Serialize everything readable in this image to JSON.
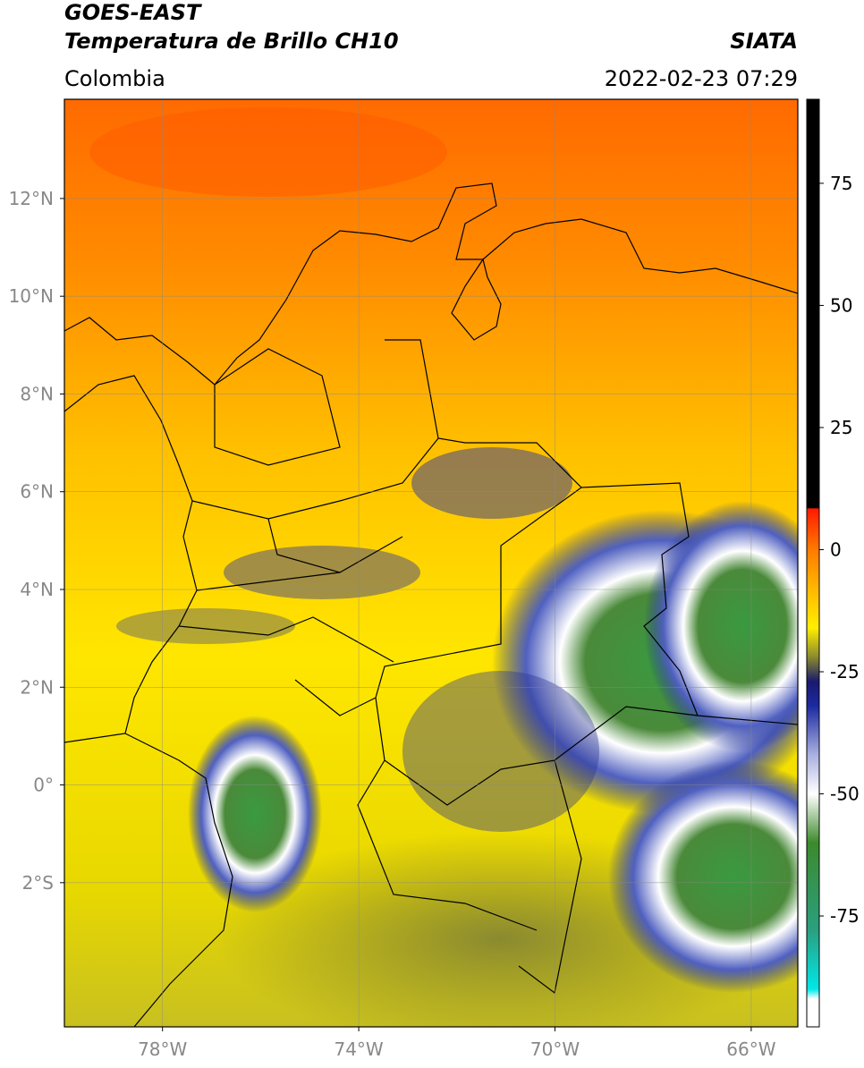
{
  "header": {
    "title": "GOES-EAST",
    "subtitle": "Temperatura de Brillo CH10",
    "region": "Colombia",
    "source": "SIATA",
    "datetime": "2022-02-23 07:29"
  },
  "map": {
    "xlim": [
      -80,
      -65.05
    ],
    "ylim": [
      -4.95,
      14.03
    ],
    "grid": true,
    "xticks": [
      {
        "value": -78,
        "label": "78°W"
      },
      {
        "value": -74,
        "label": "74°W"
      },
      {
        "value": -70,
        "label": "70°W"
      },
      {
        "value": -66,
        "label": "66°W"
      }
    ],
    "yticks": [
      {
        "value": 12,
        "label": "12°N"
      },
      {
        "value": 10,
        "label": "10°N"
      },
      {
        "value": 8,
        "label": "8°N"
      },
      {
        "value": 6,
        "label": "6°N"
      },
      {
        "value": 4,
        "label": "4°N"
      },
      {
        "value": 2,
        "label": "2°N"
      },
      {
        "value": 0,
        "label": "0°"
      },
      {
        "value": -2,
        "label": "2°S"
      }
    ]
  },
  "colorbar": {
    "lim": [
      -97.7,
      92.2
    ],
    "ticks": [
      75,
      50,
      25,
      0,
      -25,
      -50,
      -75
    ],
    "stops": [
      {
        "value": 92.2,
        "color": "#000000"
      },
      {
        "value": 8.5,
        "color": "#000000"
      },
      {
        "value": 8.4,
        "color": "#ff1a00"
      },
      {
        "value": 0,
        "color": "#ff7a00"
      },
      {
        "value": -8,
        "color": "#ffb800"
      },
      {
        "value": -16,
        "color": "#ffee00"
      },
      {
        "value": -22,
        "color": "#8a8a2e"
      },
      {
        "value": -27,
        "color": "#1a1a6e"
      },
      {
        "value": -32,
        "color": "#1c2aa0"
      },
      {
        "value": -42,
        "color": "#aab0e0"
      },
      {
        "value": -50,
        "color": "#ffffff"
      },
      {
        "value": -60,
        "color": "#3c8a2c"
      },
      {
        "value": -78,
        "color": "#2aa080"
      },
      {
        "value": -90,
        "color": "#00e8e8"
      },
      {
        "value": -92,
        "color": "#ffffff"
      },
      {
        "value": -97.7,
        "color": "#ffffff"
      }
    ]
  }
}
